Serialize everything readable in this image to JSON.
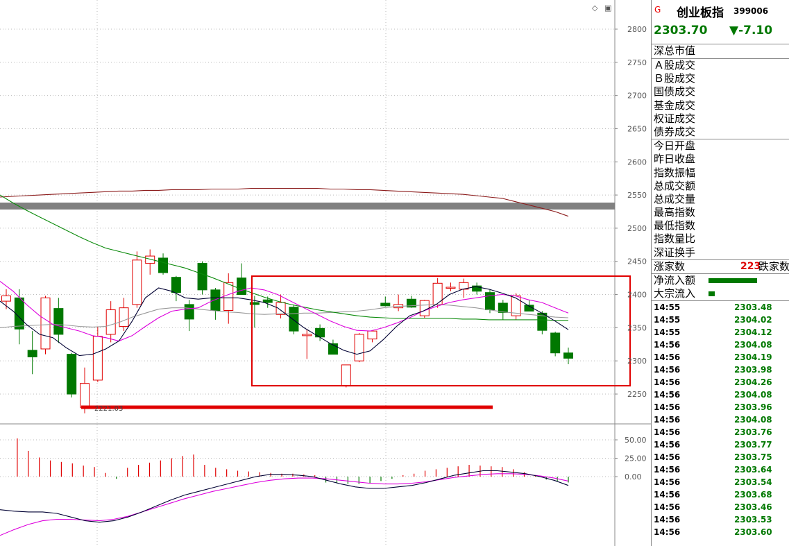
{
  "chart_data": {
    "type": "candlestick",
    "title": "",
    "ylim": [
      2205,
      2820
    ],
    "yticks": [
      "2800",
      "2750",
      "2700",
      "2650",
      "2600",
      "2550",
      "2500",
      "2450",
      "2400",
      "2350",
      "2300",
      "2250"
    ],
    "low_label": "2221.03",
    "candles": [
      {
        "o": 2390,
        "h": 2408,
        "l": 2378,
        "c": 2398
      },
      {
        "o": 2395,
        "h": 2408,
        "l": 2325,
        "c": 2348
      },
      {
        "o": 2316,
        "h": 2345,
        "l": 2280,
        "c": 2306
      },
      {
        "o": 2318,
        "h": 2398,
        "l": 2310,
        "c": 2395
      },
      {
        "o": 2379,
        "h": 2395,
        "l": 2327,
        "c": 2340
      },
      {
        "o": 2310,
        "h": 2312,
        "l": 2245,
        "c": 2250
      },
      {
        "o": 2230,
        "h": 2290,
        "l": 2221,
        "c": 2266
      },
      {
        "o": 2271,
        "h": 2352,
        "l": 2268,
        "c": 2337
      },
      {
        "o": 2340,
        "h": 2390,
        "l": 2328,
        "c": 2377
      },
      {
        "o": 2352,
        "h": 2395,
        "l": 2345,
        "c": 2380
      },
      {
        "o": 2385,
        "h": 2465,
        "l": 2380,
        "c": 2452
      },
      {
        "o": 2447,
        "h": 2468,
        "l": 2430,
        "c": 2458
      },
      {
        "o": 2455,
        "h": 2462,
        "l": 2430,
        "c": 2433
      },
      {
        "o": 2426,
        "h": 2428,
        "l": 2390,
        "c": 2403
      },
      {
        "o": 2385,
        "h": 2392,
        "l": 2345,
        "c": 2363
      },
      {
        "o": 2447,
        "h": 2450,
        "l": 2400,
        "c": 2407
      },
      {
        "o": 2407,
        "h": 2410,
        "l": 2362,
        "c": 2376
      },
      {
        "o": 2376,
        "h": 2432,
        "l": 2356,
        "c": 2418
      },
      {
        "o": 2425,
        "h": 2447,
        "l": 2400,
        "c": 2400
      },
      {
        "o": 2388,
        "h": 2398,
        "l": 2350,
        "c": 2385
      },
      {
        "o": 2392,
        "h": 2397,
        "l": 2380,
        "c": 2388
      },
      {
        "o": 2370,
        "h": 2400,
        "l": 2364,
        "c": 2388
      },
      {
        "o": 2381,
        "h": 2385,
        "l": 2340,
        "c": 2345
      },
      {
        "o": 2338,
        "h": 2347,
        "l": 2303,
        "c": 2340
      },
      {
        "o": 2349,
        "h": 2355,
        "l": 2330,
        "c": 2336
      },
      {
        "o": 2326,
        "h": 2332,
        "l": 2310,
        "c": 2310
      },
      {
        "o": 2262,
        "h": 2294,
        "l": 2260,
        "c": 2294
      },
      {
        "o": 2300,
        "h": 2342,
        "l": 2298,
        "c": 2340
      },
      {
        "o": 2333,
        "h": 2345,
        "l": 2328,
        "c": 2345
      },
      {
        "o": 2387,
        "h": 2397,
        "l": 2382,
        "c": 2383
      },
      {
        "o": 2380,
        "h": 2400,
        "l": 2375,
        "c": 2385
      },
      {
        "o": 2393,
        "h": 2398,
        "l": 2380,
        "c": 2381
      },
      {
        "o": 2368,
        "h": 2392,
        "l": 2365,
        "c": 2391
      },
      {
        "o": 2385,
        "h": 2425,
        "l": 2380,
        "c": 2417
      },
      {
        "o": 2410,
        "h": 2418,
        "l": 2405,
        "c": 2411
      },
      {
        "o": 2408,
        "h": 2424,
        "l": 2395,
        "c": 2418
      },
      {
        "o": 2413,
        "h": 2418,
        "l": 2400,
        "c": 2405
      },
      {
        "o": 2403,
        "h": 2408,
        "l": 2372,
        "c": 2377
      },
      {
        "o": 2387,
        "h": 2392,
        "l": 2362,
        "c": 2373
      },
      {
        "o": 2368,
        "h": 2402,
        "l": 2362,
        "c": 2398
      },
      {
        "o": 2384,
        "h": 2392,
        "l": 2375,
        "c": 2375
      },
      {
        "o": 2372,
        "h": 2375,
        "l": 2340,
        "c": 2346
      },
      {
        "o": 2342,
        "h": 2344,
        "l": 2307,
        "c": 2312
      },
      {
        "o": 2312,
        "h": 2320,
        "l": 2295,
        "c": 2304
      }
    ],
    "ma_red": [
      2547,
      2548,
      2549,
      2550,
      2551,
      2552,
      2553,
      2554,
      2555,
      2556,
      2556,
      2557,
      2557,
      2558,
      2558,
      2558,
      2559,
      2559,
      2559,
      2560,
      2560,
      2560,
      2560,
      2560,
      2560,
      2559,
      2559,
      2558,
      2558,
      2557,
      2556,
      2555,
      2554,
      2553,
      2552,
      2551,
      2549,
      2547,
      2545,
      2540,
      2535,
      2530,
      2525,
      2518
    ],
    "ma_green": [
      2550,
      2538,
      2527,
      2517,
      2507,
      2497,
      2487,
      2478,
      2470,
      2465,
      2460,
      2455,
      2450,
      2445,
      2440,
      2433,
      2426,
      2418,
      2410,
      2403,
      2396,
      2390,
      2385,
      2381,
      2377,
      2374,
      2371,
      2368,
      2366,
      2365,
      2364,
      2364,
      2364,
      2364,
      2364,
      2363,
      2363,
      2362,
      2362,
      2362,
      2362,
      2362,
      2361,
      2361
    ],
    "ma_gray": [
      2350,
      2352,
      2353,
      2354,
      2355,
      2354,
      2352,
      2351,
      2352,
      2358,
      2366,
      2372,
      2378,
      2380,
      2380,
      2378,
      2376,
      2374,
      2373,
      2371,
      2370,
      2371,
      2371,
      2372,
      2372,
      2373,
      2374,
      2375,
      2377,
      2380,
      2382,
      2383,
      2384,
      2385,
      2384,
      2382,
      2380,
      2377,
      2374,
      2372,
      2370,
      2368,
      2366,
      2365
    ],
    "ma_black": [
      2390,
      2375,
      2355,
      2340,
      2335,
      2320,
      2308,
      2310,
      2318,
      2330,
      2360,
      2395,
      2410,
      2405,
      2395,
      2393,
      2395,
      2395,
      2395,
      2392,
      2388,
      2380,
      2365,
      2350,
      2338,
      2326,
      2316,
      2310,
      2315,
      2332,
      2352,
      2368,
      2375,
      2385,
      2400,
      2408,
      2412,
      2408,
      2402,
      2395,
      2383,
      2372,
      2360,
      2347
    ],
    "ma_magenta": [
      2420,
      2405,
      2385,
      2368,
      2355,
      2350,
      2345,
      2338,
      2335,
      2330,
      2338,
      2352,
      2365,
      2375,
      2378,
      2380,
      2390,
      2398,
      2405,
      2410,
      2407,
      2400,
      2390,
      2380,
      2370,
      2360,
      2352,
      2346,
      2345,
      2350,
      2357,
      2365,
      2375,
      2382,
      2388,
      2392,
      2395,
      2398,
      2400,
      2398,
      2392,
      2388,
      2380,
      2372
    ],
    "macd_ylim": [
      -60,
      60
    ],
    "macd_yticks": [
      "50.00",
      "25.00",
      "0.00"
    ],
    "macd_bars": [
      0,
      52,
      35,
      26,
      22,
      20,
      18,
      15,
      13,
      5,
      -3,
      12,
      16,
      19,
      22,
      25,
      28,
      30,
      16,
      12,
      10,
      8,
      7,
      6,
      5,
      4,
      4,
      3,
      2,
      -8,
      -9,
      -10,
      -10,
      -9,
      -6,
      -3,
      2,
      4,
      8,
      10,
      12,
      14,
      16,
      15,
      14,
      13,
      10,
      6,
      2,
      -4,
      -6,
      -8
    ],
    "macd_dif": [
      -45,
      -47,
      -48,
      -48,
      -50,
      -55,
      -60,
      -62,
      -60,
      -55,
      -48,
      -40,
      -32,
      -25,
      -20,
      -15,
      -10,
      -5,
      0,
      3,
      3,
      2,
      0,
      -5,
      -10,
      -14,
      -16,
      -16,
      -14,
      -12,
      -8,
      -3,
      2,
      5,
      8,
      8,
      6,
      4,
      0,
      -5,
      -12
    ],
    "macd_dea": [
      -80,
      -72,
      -65,
      -60,
      -58,
      -58,
      -59,
      -60,
      -58,
      -54,
      -48,
      -42,
      -36,
      -30,
      -25,
      -20,
      -16,
      -12,
      -8,
      -5,
      -3,
      -2,
      -2,
      -3,
      -5,
      -7,
      -9,
      -10,
      -10,
      -9,
      -7,
      -4,
      -1,
      1,
      3,
      4,
      4,
      3,
      1,
      -2,
      -6
    ]
  },
  "window_buttons": {
    "diamond": "◇",
    "square": "▣"
  },
  "quote": {
    "flag": "G",
    "name": "创业板指",
    "code": "399006",
    "price": "2303.70",
    "change": "▼-7.10"
  },
  "info_rows_1": [
    "深总市值"
  ],
  "info_rows_2": [
    "Ａ股成交",
    "Ｂ股成交",
    "国债成交",
    "基金成交",
    "权证成交",
    "债券成交"
  ],
  "info_rows_3": [
    "今日开盘",
    "昨日收盘",
    "指数振幅",
    "总成交额",
    "总成交量",
    "最高指数",
    "最低指数",
    "指数量比",
    "深证换手"
  ],
  "advance": {
    "label": "涨家数",
    "count": "223",
    "decline_label": "跌家数"
  },
  "flows": [
    {
      "label": "净流入额",
      "bar_fraction": 0.72
    },
    {
      "label": "大宗流入",
      "bar_fraction": 0.09
    }
  ],
  "ticks": [
    {
      "t": "14:55",
      "p": "2303.48"
    },
    {
      "t": "14:55",
      "p": "2304.02"
    },
    {
      "t": "14:55",
      "p": "2304.12"
    },
    {
      "t": "14:56",
      "p": "2304.08"
    },
    {
      "t": "14:56",
      "p": "2304.19"
    },
    {
      "t": "14:56",
      "p": "2303.98"
    },
    {
      "t": "14:56",
      "p": "2304.26"
    },
    {
      "t": "14:56",
      "p": "2304.08"
    },
    {
      "t": "14:56",
      "p": "2303.96"
    },
    {
      "t": "14:56",
      "p": "2304.08"
    },
    {
      "t": "14:56",
      "p": "2303.76"
    },
    {
      "t": "14:56",
      "p": "2303.77"
    },
    {
      "t": "14:56",
      "p": "2303.75"
    },
    {
      "t": "14:56",
      "p": "2303.64"
    },
    {
      "t": "14:56",
      "p": "2303.54"
    },
    {
      "t": "14:56",
      "p": "2303.68"
    },
    {
      "t": "14:56",
      "p": "2303.46"
    },
    {
      "t": "14:56",
      "p": "2303.53"
    },
    {
      "t": "14:56",
      "p": "2303.60"
    }
  ],
  "colors": {
    "up": "#e00000",
    "down": "#007800",
    "grid": "#aaaaaa",
    "ma_red": "#8b1a1a",
    "ma_green": "#0a8a0a",
    "ma_magenta": "#dd00dd",
    "ma_black": "#000033"
  }
}
